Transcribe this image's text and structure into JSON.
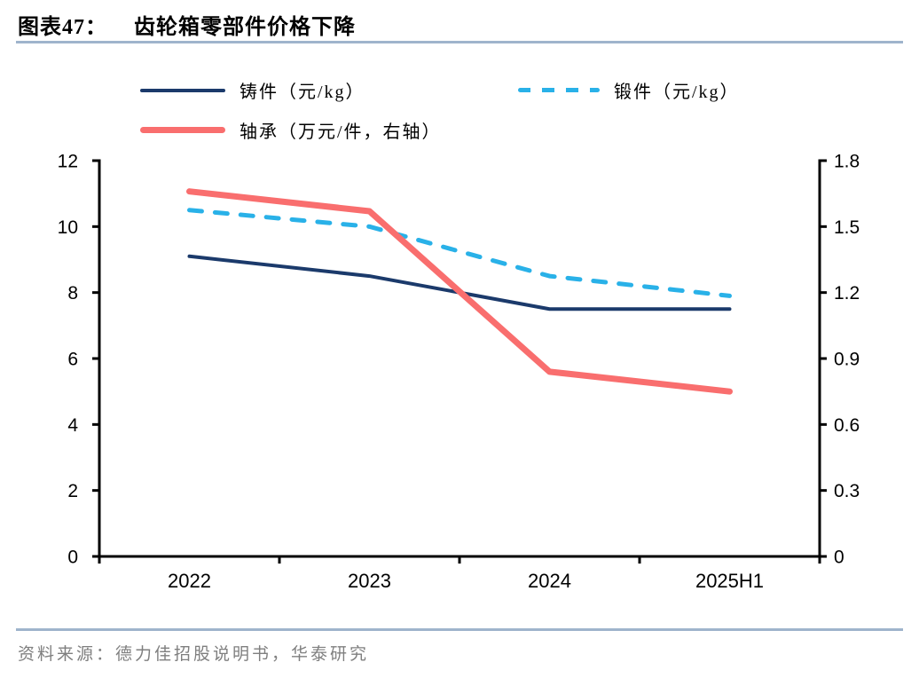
{
  "header": {
    "figure_label": "图表47：",
    "title": "齿轮箱零部件价格下降"
  },
  "legend": [
    {
      "label": "铸件（元/kg）",
      "color": "#1b3a6b",
      "style": "solid"
    },
    {
      "label": "锻件（元/kg）",
      "color": "#29b1e8",
      "style": "dashed"
    },
    {
      "label": "轴承（万元/件，右轴）",
      "color": "#f96e6e",
      "style": "thick"
    }
  ],
  "chart_data": {
    "type": "line",
    "title": "齿轮箱零部件价格下降",
    "categories": [
      "2022",
      "2023",
      "2024",
      "2025H1"
    ],
    "series": [
      {
        "name": "铸件（元/kg）",
        "axis": "left",
        "style": "solid",
        "color": "#1b3a6b",
        "values": [
          9.1,
          8.5,
          7.5,
          7.5
        ]
      },
      {
        "name": "锻件（元/kg）",
        "axis": "left",
        "style": "dashed",
        "color": "#29b1e8",
        "values": [
          10.5,
          10.0,
          8.5,
          7.9
        ]
      },
      {
        "name": "轴承（万元/件，右轴）",
        "axis": "right",
        "style": "thick",
        "color": "#f96e6e",
        "values": [
          1.66,
          1.57,
          0.84,
          0.75
        ]
      }
    ],
    "left_axis": {
      "min": 0,
      "max": 12,
      "ticks": [
        0,
        2,
        4,
        6,
        8,
        10,
        12
      ],
      "tick_labels": [
        "0",
        "2",
        "4",
        "6",
        "8",
        "10",
        "12"
      ]
    },
    "right_axis": {
      "min": 0,
      "max": 1.8,
      "ticks": [
        0,
        0.3,
        0.6,
        0.9,
        1.2,
        1.5,
        1.8
      ],
      "tick_labels": [
        "0",
        "0.3",
        "0.6",
        "0.9",
        "1.2",
        "1.5",
        "1.8"
      ]
    },
    "legend_position": "top",
    "grid": false
  },
  "footer": {
    "source": "资料来源：德力佳招股说明书，华泰研究"
  }
}
